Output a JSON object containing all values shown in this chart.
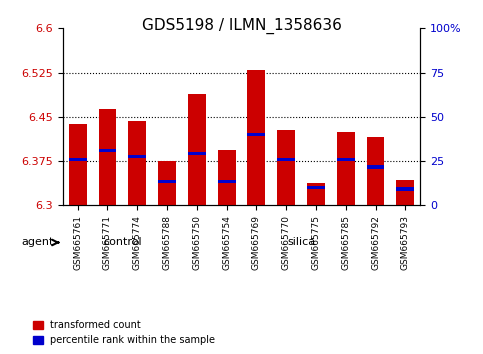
{
  "title": "GDS5198 / ILMN_1358636",
  "samples": [
    "GSM665761",
    "GSM665771",
    "GSM665774",
    "GSM665788",
    "GSM665750",
    "GSM665754",
    "GSM665769",
    "GSM665770",
    "GSM665775",
    "GSM665785",
    "GSM665792",
    "GSM665793"
  ],
  "groups": [
    "control",
    "control",
    "control",
    "control",
    "silica",
    "silica",
    "silica",
    "silica",
    "silica",
    "silica",
    "silica",
    "silica"
  ],
  "red_values": [
    6.438,
    6.463,
    6.443,
    6.375,
    6.488,
    6.393,
    6.53,
    6.428,
    6.338,
    6.425,
    6.415,
    6.343
  ],
  "blue_values": [
    6.378,
    6.393,
    6.383,
    6.34,
    6.388,
    6.34,
    6.42,
    6.378,
    6.33,
    6.378,
    6.365,
    6.328
  ],
  "ymin": 6.3,
  "ymax": 6.6,
  "yticks": [
    6.3,
    6.375,
    6.45,
    6.525,
    6.6
  ],
  "ytick_labels": [
    "6.3",
    "6.375",
    "6.45",
    "6.525",
    "6.6"
  ],
  "y2ticks": [
    0,
    25,
    50,
    75,
    100
  ],
  "y2tick_labels": [
    "0",
    "25",
    "50",
    "75",
    "100%"
  ],
  "dotted_yticks": [
    6.375,
    6.45,
    6.525
  ],
  "bar_bottom": 6.3,
  "bar_width": 0.6,
  "red_color": "#cc0000",
  "blue_color": "#0000cc",
  "control_color": "#99ee99",
  "silica_color": "#66dd66",
  "bg_color": "#cccccc",
  "agent_label": "agent",
  "legend_red": "transformed count",
  "legend_blue": "percentile rank within the sample",
  "title_fontsize": 11,
  "tick_fontsize": 8,
  "label_fontsize": 8
}
